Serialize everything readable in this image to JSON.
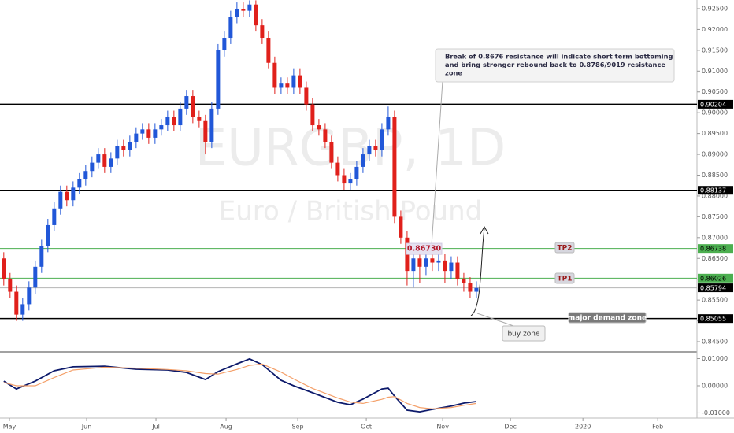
{
  "chart_data": {
    "type": "candlestick",
    "title": "EURGBP, 1D",
    "subtitle": "Euro / British Pound",
    "up_color": "#2157d8",
    "down_color": "#e0201b",
    "open": [
      0.865,
      0.86,
      0.857,
      0.8515,
      0.854,
      0.858,
      0.863,
      0.868,
      0.873,
      0.877,
      0.881,
      0.879,
      0.882,
      0.884,
      0.886,
      0.888,
      0.89,
      0.887,
      0.889,
      0.892,
      0.891,
      0.893,
      0.895,
      0.896,
      0.894,
      0.896,
      0.897,
      0.899,
      0.897,
      0.901,
      0.904,
      0.899,
      0.898,
      0.893,
      0.901,
      0.915,
      0.918,
      0.923,
      0.925,
      0.9245,
      0.926,
      0.921,
      0.918,
      0.912,
      0.906,
      0.907,
      0.906,
      0.909,
      0.906,
      0.902,
      0.897,
      0.896,
      0.893,
      0.888,
      0.885,
      0.883,
      0.884,
      0.887,
      0.89,
      0.892,
      0.891,
      0.896,
      0.899,
      0.875,
      0.87,
      0.862,
      0.865,
      0.863,
      0.865,
      0.864,
      0.8645,
      0.862,
      0.864,
      0.86,
      0.859,
      0.857
    ],
    "high": [
      0.8665,
      0.8615,
      0.8585,
      0.8555,
      0.8595,
      0.8645,
      0.8695,
      0.8745,
      0.8785,
      0.8825,
      0.8825,
      0.8835,
      0.8855,
      0.8875,
      0.8895,
      0.8915,
      0.8915,
      0.8905,
      0.8935,
      0.8935,
      0.8945,
      0.8965,
      0.8975,
      0.8975,
      0.8975,
      0.8985,
      0.9005,
      0.9005,
      0.9025,
      0.9055,
      0.9055,
      0.9005,
      0.8995,
      0.9025,
      0.9165,
      0.9195,
      0.9245,
      0.9265,
      0.9265,
      0.927,
      0.927,
      0.9225,
      0.9195,
      0.9135,
      0.9085,
      0.9085,
      0.9105,
      0.9105,
      0.9075,
      0.9035,
      0.8985,
      0.8975,
      0.8945,
      0.8895,
      0.8865,
      0.8855,
      0.8885,
      0.8915,
      0.8935,
      0.8935,
      0.8975,
      0.9015,
      0.9005,
      0.8765,
      0.8715,
      0.8673,
      0.8665,
      0.8665,
      0.8665,
      0.866,
      0.866,
      0.8655,
      0.8655,
      0.8615,
      0.8605,
      0.8595
    ],
    "low": [
      0.8585,
      0.8555,
      0.85,
      0.85,
      0.8525,
      0.8565,
      0.8615,
      0.8665,
      0.8715,
      0.8755,
      0.8775,
      0.8775,
      0.8805,
      0.8825,
      0.8845,
      0.8865,
      0.8855,
      0.8855,
      0.8875,
      0.8895,
      0.8895,
      0.8915,
      0.8935,
      0.8925,
      0.8925,
      0.8945,
      0.8955,
      0.8955,
      0.8955,
      0.8995,
      0.8975,
      0.8965,
      0.89,
      0.8915,
      0.8995,
      0.9135,
      0.9165,
      0.9215,
      0.923,
      0.923,
      0.9195,
      0.9165,
      0.9105,
      0.9045,
      0.9045,
      0.9045,
      0.9045,
      0.9045,
      0.9005,
      0.8955,
      0.8945,
      0.8915,
      0.8865,
      0.8835,
      0.8815,
      0.8815,
      0.8825,
      0.8855,
      0.8885,
      0.8895,
      0.8895,
      0.8945,
      0.8735,
      0.8685,
      0.8585,
      0.858,
      0.859,
      0.861,
      0.862,
      0.862,
      0.859,
      0.86,
      0.8585,
      0.857,
      0.8555,
      0.8555
    ],
    "close": [
      0.86,
      0.857,
      0.8515,
      0.854,
      0.858,
      0.863,
      0.868,
      0.873,
      0.877,
      0.881,
      0.879,
      0.882,
      0.884,
      0.886,
      0.888,
      0.89,
      0.887,
      0.889,
      0.892,
      0.891,
      0.893,
      0.895,
      0.896,
      0.894,
      0.896,
      0.897,
      0.899,
      0.897,
      0.901,
      0.904,
      0.899,
      0.898,
      0.893,
      0.901,
      0.915,
      0.918,
      0.923,
      0.925,
      0.9245,
      0.926,
      0.921,
      0.918,
      0.912,
      0.906,
      0.907,
      0.906,
      0.909,
      0.906,
      0.902,
      0.897,
      0.896,
      0.893,
      0.888,
      0.885,
      0.883,
      0.884,
      0.887,
      0.89,
      0.892,
      0.891,
      0.896,
      0.899,
      0.875,
      0.87,
      0.862,
      0.865,
      0.863,
      0.865,
      0.864,
      0.8645,
      0.862,
      0.864,
      0.86,
      0.859,
      0.857,
      0.8579
    ],
    "xlim": [
      -0.6,
      110
    ],
    "xticks": [
      {
        "value": 0.9,
        "label": "May"
      },
      {
        "value": 13.15,
        "label": "Jun"
      },
      {
        "value": 24.15,
        "label": "Jul"
      },
      {
        "value": 35.275,
        "label": "Aug"
      },
      {
        "value": 46.65,
        "label": "Sep"
      },
      {
        "value": 57.525,
        "label": "Oct"
      },
      {
        "value": 69.65,
        "label": "Nov"
      },
      {
        "value": 80.4,
        "label": "Dec"
      },
      {
        "value": 91.9,
        "label": "2020"
      },
      {
        "value": 103.775,
        "label": "Feb"
      }
    ],
    "ylim": [
      0.84292,
      0.92708
    ],
    "yticks": [
      {
        "value": 0.925,
        "label": "0.92500"
      },
      {
        "value": 0.92,
        "label": "0.92000"
      },
      {
        "value": 0.915,
        "label": "0.91500"
      },
      {
        "value": 0.91,
        "label": "0.91000"
      },
      {
        "value": 0.905,
        "label": "0.90500"
      },
      {
        "value": 0.9,
        "label": "0.90000"
      },
      {
        "value": 0.895,
        "label": "0.89500"
      },
      {
        "value": 0.89,
        "label": "0.89000"
      },
      {
        "value": 0.885,
        "label": "0.88500"
      },
      {
        "value": 0.88,
        "label": "0.88000"
      },
      {
        "value": 0.875,
        "label": "0.87500"
      },
      {
        "value": 0.87,
        "label": "0.87000"
      },
      {
        "value": 0.865,
        "label": "0.86500"
      },
      {
        "value": 0.86,
        "label": "0.86000"
      },
      {
        "value": 0.855,
        "label": "0.85500"
      },
      {
        "value": 0.85,
        "label": "0.85000"
      },
      {
        "value": 0.845,
        "label": "0.84500"
      }
    ],
    "levels": [
      {
        "value": 0.90204,
        "color": "#000000"
      },
      {
        "value": 0.88137,
        "color": "#000000"
      },
      {
        "value": 0.86738,
        "color": "#4caf50"
      },
      {
        "value": 0.86026,
        "color": "#4caf50"
      },
      {
        "value": 0.85794,
        "color": "#b5b5b5"
      },
      {
        "value": 0.85055,
        "color": "#000000"
      }
    ],
    "price_note": {
      "value": 0.8673,
      "label": "0.86730"
    },
    "callout": [
      "Break of 0.8676 resistance will indicate short term bottoming",
      "and bring stronger rebound back to 0.8786/9019 resistance",
      "zone"
    ],
    "annotations": [
      "TP2",
      "TP1",
      "buy zone",
      "major demand zone"
    ],
    "macd": {
      "x": [
        0,
        2,
        5,
        8,
        11,
        16,
        21,
        26,
        29,
        32,
        34,
        37,
        39,
        41,
        44,
        46,
        49,
        53,
        55,
        57,
        60,
        61,
        62,
        64,
        66,
        68,
        71,
        73,
        75
      ],
      "series": [
        {
          "color": "#0d1a6b",
          "values": [
            0.0017,
            -0.0012,
            0.0017,
            0.0055,
            0.007,
            0.0072,
            0.0061,
            0.0058,
            0.0049,
            0.0023,
            0.0052,
            0.0081,
            0.0099,
            0.0078,
            0.002,
            0.0,
            -0.0026,
            -0.0061,
            -0.007,
            -0.0049,
            -0.0012,
            -0.0009,
            -0.0038,
            -0.009,
            -0.0096,
            -0.0087,
            -0.0075,
            -0.0064,
            -0.0058
          ]
        },
        {
          "color": "#f4a06a",
          "values": [
            0.0012,
            0.0,
            0.0,
            0.003,
            0.0058,
            0.0068,
            0.0065,
            0.006,
            0.0055,
            0.0045,
            0.0043,
            0.006,
            0.0075,
            0.008,
            0.005,
            0.0025,
            -0.001,
            -0.0045,
            -0.006,
            -0.0065,
            -0.005,
            -0.0042,
            -0.004,
            -0.0065,
            -0.008,
            -0.0085,
            -0.008,
            -0.0072,
            -0.0065
          ]
        }
      ],
      "ylim": [
        -0.0119,
        0.0116
      ],
      "yticks": [
        {
          "value": 0.01,
          "label": "0.01000"
        },
        {
          "value": 0,
          "label": "0.00000"
        },
        {
          "value": -0.01,
          "label": "-0.01000"
        }
      ]
    }
  }
}
